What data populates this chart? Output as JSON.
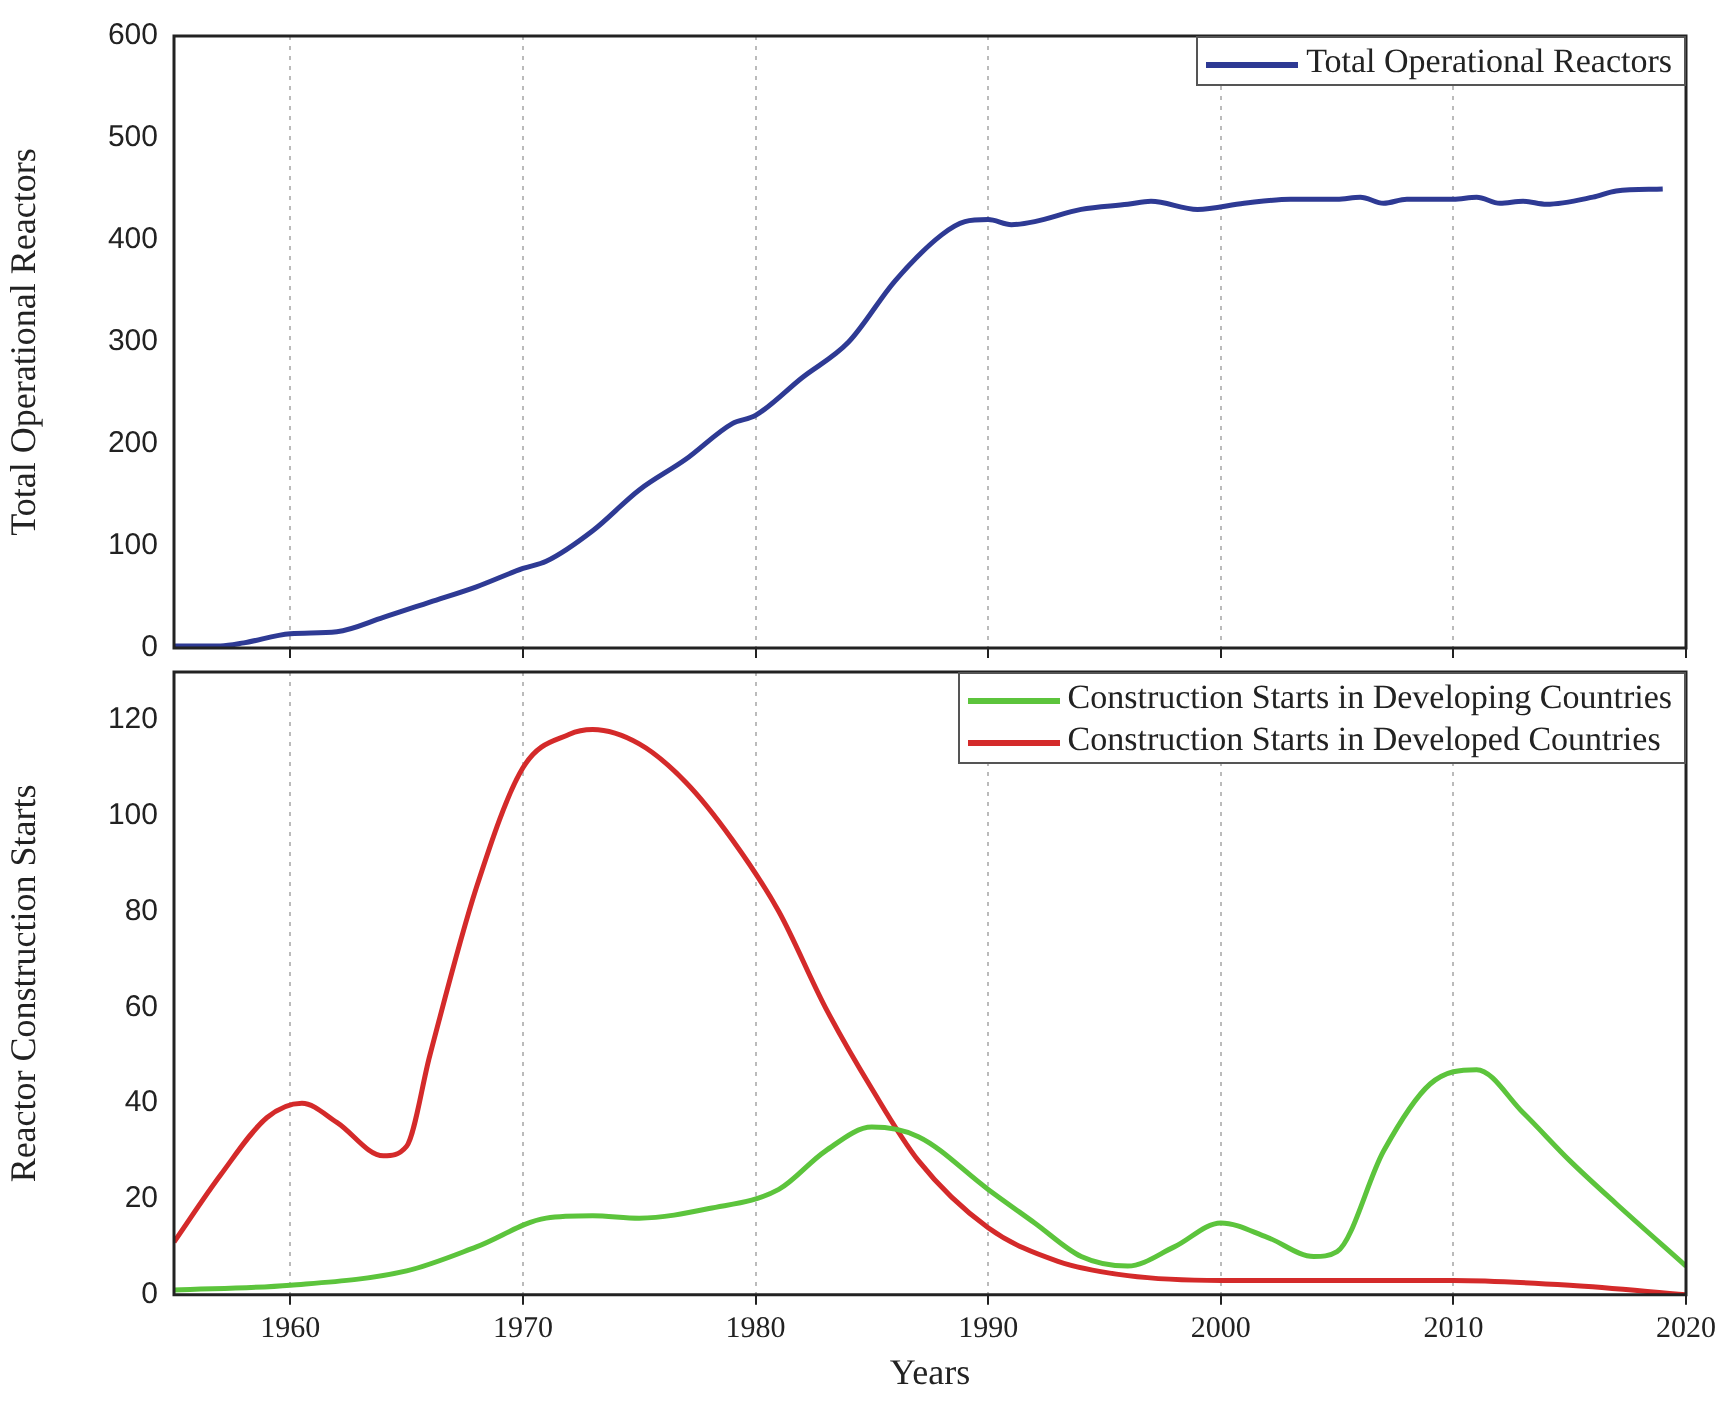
{
  "chart_data": [
    {
      "type": "line",
      "ylabel": "Total Operational Reactors",
      "xlim": [
        1955,
        2020
      ],
      "xticks": [
        1960,
        1970,
        1980,
        1990,
        2000,
        2010,
        2020
      ],
      "ylim": [
        0,
        600
      ],
      "yticks": [
        0,
        100,
        200,
        300,
        400,
        500,
        600
      ],
      "tick_labels": "y",
      "grid": "x",
      "legend": "top right",
      "marker": "none",
      "line_style": "solid",
      "series": [
        {
          "name": "Total Operational Reactors",
          "color": "#2e3a94",
          "x": [
            1955,
            1957,
            1958,
            1960,
            1962,
            1964,
            1966,
            1968,
            1970,
            1971,
            1973,
            1975,
            1977,
            1979,
            1980,
            1982,
            1984,
            1986,
            1988,
            1989,
            1990,
            1991,
            1992,
            1994,
            1996,
            1997,
            1999,
            2001,
            2003,
            2005,
            2006,
            2007,
            2008,
            2010,
            2011,
            2012,
            2013,
            2014,
            2016,
            2017,
            2019
          ],
          "values": [
            2,
            2,
            5,
            14,
            16,
            30,
            45,
            60,
            78,
            85,
            115,
            155,
            185,
            220,
            228,
            265,
            300,
            360,
            405,
            418,
            420,
            415,
            418,
            430,
            435,
            438,
            430,
            436,
            440,
            440,
            442,
            436,
            440,
            440,
            442,
            436,
            438,
            435,
            442,
            448,
            450
          ]
        }
      ]
    },
    {
      "type": "line",
      "xlabel": "Years",
      "ylabel": "Reactor Construction Starts",
      "xlim": [
        1955,
        2020
      ],
      "xticks": [
        1960,
        1970,
        1980,
        1990,
        2000,
        2010,
        2020
      ],
      "ylim": [
        0,
        130
      ],
      "yticks": [
        0,
        20,
        40,
        60,
        80,
        100,
        120
      ],
      "grid": "x",
      "legend": "top right",
      "marker": "none",
      "line_style": "solid",
      "series": [
        {
          "name": "Construction Starts in Developing Countries",
          "color": "#5cc43c",
          "x": [
            1955,
            1960,
            1965,
            1968,
            1971,
            1973,
            1975,
            1978,
            1981,
            1983,
            1985,
            1987,
            1990,
            1992,
            1994,
            1996,
            1998,
            2000,
            2002,
            2004,
            2005,
            2007,
            2009,
            2011,
            2013,
            2015,
            2017,
            2020
          ],
          "values": [
            1,
            2,
            5,
            10,
            16,
            16.5,
            16,
            18,
            22,
            30,
            35,
            33,
            22,
            15,
            8,
            6,
            10,
            15,
            12,
            8,
            9,
            30,
            44,
            47,
            38,
            28,
            19,
            6
          ]
        },
        {
          "name": "Construction Starts in Developed Countries",
          "color": "#d42a2a",
          "x": [
            1955,
            1957,
            1959,
            1960.5,
            1962,
            1964,
            1965,
            1966,
            1968,
            1970,
            1972,
            1973,
            1975,
            1977,
            1979,
            1981,
            1983,
            1985,
            1987,
            1990,
            1993,
            1996,
            2000,
            2005,
            2010,
            2015,
            2020
          ],
          "values": [
            11,
            25,
            37,
            40,
            36,
            29,
            31,
            50,
            85,
            110,
            117,
            118,
            115,
            107,
            95,
            80,
            60,
            43,
            28,
            14,
            7,
            4,
            3,
            3,
            3,
            2,
            0
          ]
        }
      ]
    }
  ]
}
